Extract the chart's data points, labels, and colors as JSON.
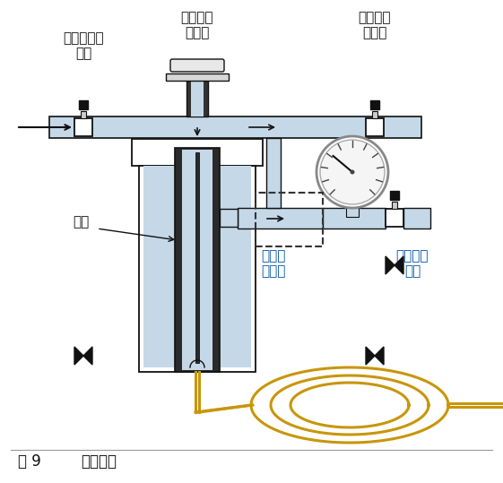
{
  "caption_label": "图 9",
  "caption_text": "分流模式",
  "label_inlet_flow": "进样口流量\n控制",
  "label_septum_nut": "隔垫螺母\n和隔垫",
  "label_septum_purge": "隔垫吹扫\n气控制",
  "label_liner": "衬管",
  "label_split_valve": "分流阀\n（开）",
  "label_split_outlet": "分流出口\n控制",
  "light_blue": "#c5d8e8",
  "dark_gray": "#2a2a2a",
  "black": "#111111",
  "white": "#ffffff",
  "gold": "#c8960a",
  "bg_color": "#ffffff",
  "fig_width": 5.61,
  "fig_height": 5.39,
  "dpi": 100
}
